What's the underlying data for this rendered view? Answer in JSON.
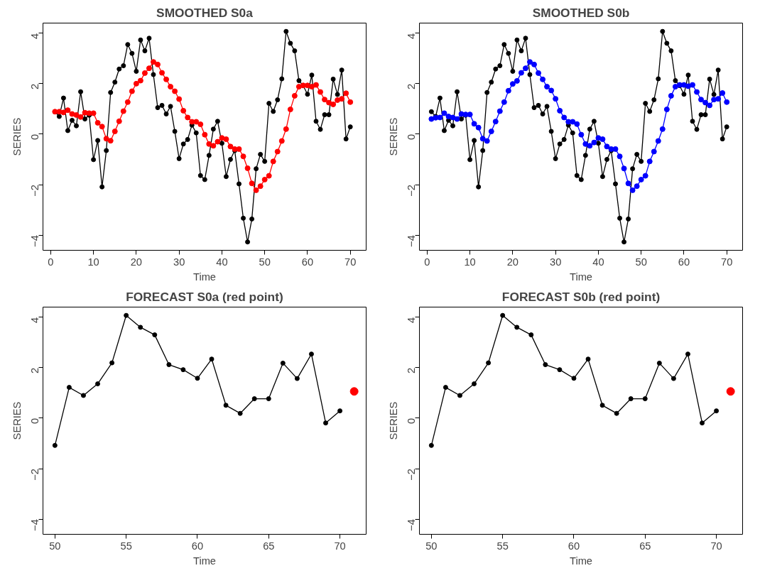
{
  "chart_data": [
    {
      "type": "line",
      "title": "SMOOTHED S0a",
      "xlabel": "Time",
      "ylabel": "SERIES",
      "xlim": [
        -1.8,
        73.7
      ],
      "ylim": [
        -4.6,
        4.4
      ],
      "xticks": [
        0,
        10,
        20,
        30,
        40,
        50,
        60,
        70
      ],
      "yticks": [
        -4,
        -2,
        0,
        2,
        4
      ],
      "grid": false,
      "marker": "circle",
      "x": [
        1,
        2,
        3,
        4,
        5,
        6,
        7,
        8,
        9,
        10,
        11,
        12,
        13,
        14,
        15,
        16,
        17,
        18,
        19,
        20,
        21,
        22,
        23,
        24,
        25,
        26,
        27,
        28,
        29,
        30,
        31,
        32,
        33,
        34,
        35,
        36,
        37,
        38,
        39,
        40,
        41,
        42,
        43,
        44,
        45,
        46,
        47,
        48,
        49,
        50,
        51,
        52,
        53,
        54,
        55,
        56,
        57,
        58,
        59,
        60,
        61,
        62,
        63,
        64,
        65,
        66,
        67,
        68,
        69,
        70
      ],
      "series": [
        {
          "color": "#000000",
          "values": [
            0.89,
            0.7,
            1.43,
            0.14,
            0.55,
            0.33,
            1.68,
            0.6,
            0.75,
            -1.01,
            -0.25,
            -2.09,
            -0.65,
            1.65,
            2.06,
            2.58,
            2.71,
            3.55,
            3.2,
            2.49,
            3.73,
            3.3,
            3.8,
            2.36,
            1.05,
            1.14,
            0.8,
            1.1,
            0.11,
            -0.97,
            -0.39,
            -0.21,
            0.36,
            0.05,
            -1.64,
            -1.8,
            -0.84,
            0.2,
            0.51,
            -0.36,
            -1.68,
            -1.0,
            -0.65,
            -1.97,
            -3.33,
            -4.27,
            -3.36,
            -1.37,
            -0.8,
            -1.08,
            1.22,
            0.9,
            1.36,
            2.19,
            4.07,
            3.6,
            3.3,
            2.12,
            1.92,
            1.58,
            2.34,
            0.51,
            0.19,
            0.77,
            0.77,
            2.18,
            1.57,
            2.54,
            -0.19,
            0.29
          ]
        },
        {
          "color": "#ff0000",
          "values": [
            0.89,
            0.89,
            0.86,
            0.95,
            0.8,
            0.76,
            0.68,
            0.85,
            0.83,
            0.83,
            0.45,
            0.3,
            -0.18,
            -0.26,
            0.11,
            0.51,
            0.91,
            1.27,
            1.7,
            2.0,
            2.12,
            2.42,
            2.61,
            2.86,
            2.76,
            2.43,
            2.17,
            1.88,
            1.7,
            1.39,
            0.93,
            0.66,
            0.49,
            0.49,
            0.39,
            -0.02,
            -0.39,
            -0.46,
            -0.3,
            -0.15,
            -0.2,
            -0.49,
            -0.59,
            -0.59,
            -0.88,
            -1.35,
            -1.95,
            -2.22,
            -2.06,
            -1.8,
            -1.65,
            -1.08,
            -0.69,
            -0.27,
            0.2,
            0.98,
            1.52,
            1.88,
            1.93,
            1.93,
            1.88,
            1.95,
            1.67,
            1.37,
            1.25,
            1.18,
            1.35,
            1.4,
            1.62,
            1.27
          ]
        }
      ]
    },
    {
      "type": "line",
      "title": "SMOOTHED S0b",
      "xlabel": "Time",
      "ylabel": "SERIES",
      "xlim": [
        -1.8,
        73.7
      ],
      "ylim": [
        -4.6,
        4.4
      ],
      "xticks": [
        0,
        10,
        20,
        30,
        40,
        50,
        60,
        70
      ],
      "yticks": [
        -4,
        -2,
        0,
        2,
        4
      ],
      "grid": false,
      "marker": "circle",
      "x": [
        1,
        2,
        3,
        4,
        5,
        6,
        7,
        8,
        9,
        10,
        11,
        12,
        13,
        14,
        15,
        16,
        17,
        18,
        19,
        20,
        21,
        22,
        23,
        24,
        25,
        26,
        27,
        28,
        29,
        30,
        31,
        32,
        33,
        34,
        35,
        36,
        37,
        38,
        39,
        40,
        41,
        42,
        43,
        44,
        45,
        46,
        47,
        48,
        49,
        50,
        51,
        52,
        53,
        54,
        55,
        56,
        57,
        58,
        59,
        60,
        61,
        62,
        63,
        64,
        65,
        66,
        67,
        68,
        69,
        70
      ],
      "series": [
        {
          "color": "#000000",
          "values": [
            0.89,
            0.7,
            1.43,
            0.14,
            0.55,
            0.33,
            1.68,
            0.6,
            0.75,
            -1.01,
            -0.25,
            -2.09,
            -0.65,
            1.65,
            2.06,
            2.58,
            2.71,
            3.55,
            3.2,
            2.49,
            3.73,
            3.3,
            3.8,
            2.36,
            1.05,
            1.14,
            0.8,
            1.1,
            0.11,
            -0.97,
            -0.39,
            -0.21,
            0.36,
            0.05,
            -1.64,
            -1.8,
            -0.84,
            0.2,
            0.51,
            -0.36,
            -1.68,
            -1.0,
            -0.65,
            -1.97,
            -3.33,
            -4.27,
            -3.36,
            -1.37,
            -0.8,
            -1.08,
            1.22,
            0.9,
            1.36,
            2.19,
            4.07,
            3.6,
            3.3,
            2.12,
            1.92,
            1.58,
            2.34,
            0.51,
            0.19,
            0.77,
            0.77,
            2.18,
            1.57,
            2.54,
            -0.19,
            0.29
          ]
        },
        {
          "color": "#0000ff",
          "values": [
            0.6,
            0.65,
            0.66,
            0.83,
            0.7,
            0.66,
            0.6,
            0.8,
            0.78,
            0.78,
            0.41,
            0.26,
            -0.18,
            -0.27,
            0.11,
            0.5,
            0.91,
            1.27,
            1.72,
            1.99,
            2.11,
            2.43,
            2.61,
            2.86,
            2.76,
            2.42,
            2.17,
            1.88,
            1.73,
            1.4,
            0.93,
            0.66,
            0.49,
            0.49,
            0.4,
            -0.02,
            -0.39,
            -0.46,
            -0.33,
            -0.15,
            -0.2,
            -0.49,
            -0.59,
            -0.59,
            -0.88,
            -1.36,
            -1.95,
            -2.22,
            -2.06,
            -1.8,
            -1.65,
            -1.08,
            -0.69,
            -0.27,
            0.2,
            0.98,
            1.52,
            1.88,
            1.95,
            1.95,
            1.9,
            1.95,
            1.67,
            1.37,
            1.25,
            1.14,
            1.37,
            1.4,
            1.63,
            1.27
          ]
        }
      ]
    },
    {
      "type": "line",
      "title": "FORECAST S0a (red point)",
      "xlabel": "Time",
      "ylabel": "SERIES",
      "xlim": [
        49.16,
        71.84
      ],
      "ylim": [
        -4.6,
        4.4
      ],
      "xticks": [
        50,
        55,
        60,
        65,
        70
      ],
      "yticks": [
        -4,
        -2,
        0,
        2,
        4
      ],
      "grid": false,
      "marker": "circle",
      "x": [
        50,
        51,
        52,
        53,
        54,
        55,
        56,
        57,
        58,
        59,
        60,
        61,
        62,
        63,
        64,
        65,
        66,
        67,
        68,
        69,
        70
      ],
      "series": [
        {
          "color": "#000000",
          "values": [
            -1.08,
            1.22,
            0.9,
            1.36,
            2.19,
            4.07,
            3.6,
            3.3,
            2.12,
            1.92,
            1.58,
            2.34,
            0.51,
            0.19,
            0.77,
            0.77,
            2.18,
            1.57,
            2.54,
            -0.19,
            0.29
          ]
        },
        {
          "type": "scatter",
          "color": "#ff0000",
          "x": [
            71
          ],
          "values": [
            1.06
          ]
        }
      ]
    },
    {
      "type": "line",
      "title": "FORECAST S0b (red point)",
      "xlabel": "Time",
      "ylabel": "SERIES",
      "xlim": [
        49.16,
        71.84
      ],
      "ylim": [
        -4.6,
        4.4
      ],
      "xticks": [
        50,
        55,
        60,
        65,
        70
      ],
      "yticks": [
        -4,
        -2,
        0,
        2,
        4
      ],
      "grid": false,
      "marker": "circle",
      "x": [
        50,
        51,
        52,
        53,
        54,
        55,
        56,
        57,
        58,
        59,
        60,
        61,
        62,
        63,
        64,
        65,
        66,
        67,
        68,
        69,
        70
      ],
      "series": [
        {
          "color": "#000000",
          "values": [
            -1.08,
            1.22,
            0.9,
            1.36,
            2.19,
            4.07,
            3.6,
            3.3,
            2.12,
            1.92,
            1.58,
            2.34,
            0.51,
            0.19,
            0.77,
            0.77,
            2.18,
            1.57,
            2.54,
            -0.19,
            0.29
          ]
        },
        {
          "type": "scatter",
          "color": "#ff0000",
          "x": [
            71
          ],
          "values": [
            1.06
          ]
        }
      ]
    }
  ]
}
